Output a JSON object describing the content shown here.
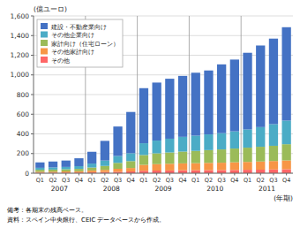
{
  "chart_data": {
    "type": "bar",
    "stacked": true,
    "categories": [
      "Q1",
      "Q2",
      "Q3",
      "Q4",
      "Q1",
      "Q2",
      "Q3",
      "Q4",
      "Q1",
      "Q2",
      "Q3",
      "Q4",
      "Q1",
      "Q2",
      "Q3",
      "Q4",
      "Q1",
      "Q2",
      "Q3",
      "Q4"
    ],
    "series": [
      {
        "name": "その他",
        "color": "#FF6666",
        "values": [
          5,
          5,
          6,
          7,
          10,
          12,
          15,
          18,
          25,
          27,
          28,
          30,
          30,
          31,
          32,
          33,
          35,
          36,
          38,
          40
        ]
      },
      {
        "name": "その他家計向け",
        "color": "#F79646",
        "values": [
          10,
          11,
          12,
          13,
          18,
          22,
          30,
          35,
          60,
          65,
          68,
          70,
          72,
          74,
          75,
          78,
          80,
          83,
          86,
          90
        ]
      },
      {
        "name": "家計向け（住宅ローン）",
        "color": "#9BBB59",
        "values": [
          20,
          21,
          22,
          24,
          30,
          40,
          60,
          70,
          100,
          110,
          115,
          120,
          125,
          130,
          135,
          140,
          145,
          150,
          155,
          165
        ]
      },
      {
        "name": "その他企業向け",
        "color": "#4BACC6",
        "values": [
          20,
          22,
          24,
          28,
          40,
          55,
          70,
          80,
          120,
          130,
          140,
          150,
          155,
          160,
          165,
          175,
          185,
          200,
          220,
          240
        ]
      },
      {
        "name": "建設・不動産業向け",
        "color": "#4472C4",
        "values": [
          55,
          60,
          65,
          80,
          120,
          200,
          300,
          420,
          560,
          590,
          610,
          620,
          640,
          650,
          700,
          730,
          780,
          830,
          870,
          950
        ]
      }
    ],
    "y_label": "(億ユーロ)",
    "x_label": "(年期)",
    "annotations": [
      {
        "text": "2007",
        "x": 1.5
      },
      {
        "text": "2008",
        "x": 5.5
      },
      {
        "text": "2009",
        "x": 9.5
      },
      {
        "text": "2010",
        "x": 13.5
      },
      {
        "text": "2011",
        "x": 17.5
      }
    ],
    "notes": [
      "備考：各期末の残高ベース。",
      "資料：スペイン中央銀行、CEIC データベースから作成。"
    ],
    "ylim": [
      0,
      1600
    ],
    "yticks": [
      0,
      200,
      400,
      600,
      800,
      {
        "value": 1000,
        "label": "1,000"
      },
      {
        "value": 1200,
        "label": "1,200"
      },
      {
        "value": 1400,
        "label": "1,400"
      },
      {
        "value": 1600,
        "label": "1,600"
      }
    ],
    "grid": true,
    "legend": "upper left"
  }
}
